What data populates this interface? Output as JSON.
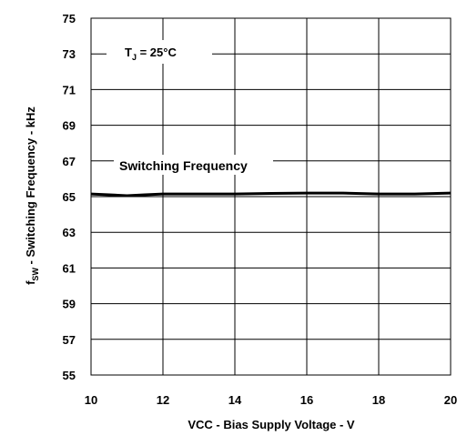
{
  "chart_data": {
    "type": "line",
    "xlabel": "VCC - Bias Supply Voltage - V",
    "ylabel": "f_SW - Switching Frequency - kHz",
    "ylabel_parts": {
      "symbol": "f",
      "subscript": "SW",
      "rest": " - Switching Frequency - kHz"
    },
    "xlim": [
      10,
      20
    ],
    "ylim": [
      55,
      75
    ],
    "x_ticks": [
      "10",
      "12",
      "14",
      "16",
      "18",
      "20"
    ],
    "y_ticks": [
      "55",
      "57",
      "59",
      "61",
      "63",
      "65",
      "67",
      "69",
      "71",
      "73",
      "75"
    ],
    "x_tick_values": [
      10,
      12,
      14,
      16,
      18,
      20
    ],
    "y_tick_values": [
      55,
      57,
      59,
      61,
      63,
      65,
      67,
      69,
      71,
      73,
      75
    ],
    "grid": true,
    "annotation": {
      "symbol": "T",
      "subscript": "J",
      "rest": " = 25°C"
    },
    "series": [
      {
        "name": "Switching Frequency",
        "x": [
          10,
          10.5,
          11,
          11.5,
          12,
          13,
          14,
          15,
          16,
          17,
          18,
          19,
          20
        ],
        "y": [
          65.15,
          65.1,
          65.05,
          65.1,
          65.15,
          65.15,
          65.15,
          65.18,
          65.2,
          65.2,
          65.15,
          65.15,
          65.2
        ]
      }
    ],
    "colors": {
      "line": "#000000",
      "grid": "#000000"
    }
  }
}
